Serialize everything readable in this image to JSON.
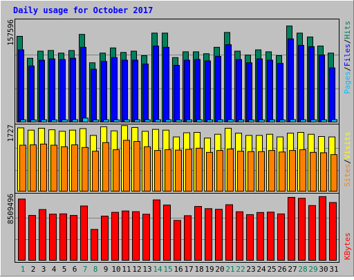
{
  "chart_data": [
    {
      "type": "bar",
      "title": "Daily usage for October 2017",
      "categories": [
        "1",
        "2",
        "3",
        "4",
        "5",
        "6",
        "7",
        "8",
        "9",
        "10",
        "11",
        "12",
        "13",
        "14",
        "15",
        "16",
        "17",
        "18",
        "19",
        "20",
        "21",
        "22",
        "23",
        "24",
        "25",
        "26",
        "27",
        "28",
        "29",
        "30",
        "31"
      ],
      "weekend_days": [
        "1",
        "7",
        "8",
        "14",
        "15",
        "21",
        "22",
        "28",
        "29"
      ],
      "ymax_label": "157596",
      "ylim": [
        0,
        157596
      ],
      "series": [
        {
          "name": "Hits",
          "color": "#00805c",
          "values": [
            134000,
            100000,
            111000,
            112000,
            108000,
            112000,
            137000,
            93000,
            108000,
            116000,
            109000,
            111000,
            104000,
            139000,
            139000,
            101000,
            110000,
            110000,
            107000,
            117000,
            140000,
            111000,
            105000,
            113000,
            110000,
            104000,
            150000,
            139000,
            133000,
            119000,
            108000
          ]
        },
        {
          "name": "Files",
          "color": "#0000ff",
          "values": [
            113000,
            88000,
            97000,
            99000,
            98000,
            100000,
            117000,
            83000,
            95000,
            101000,
            97000,
            97000,
            91000,
            119000,
            117000,
            89000,
            97000,
            98000,
            96000,
            103000,
            121000,
            98000,
            93000,
            99000,
            97000,
            92000,
            130000,
            120000,
            118000,
            105000,
            85000
          ]
        },
        {
          "name": "Pages",
          "color": "#00c0ff",
          "values": [
            4500,
            4300,
            4600,
            4400,
            4500,
            4700,
            7200,
            4300,
            4600,
            4500,
            4500,
            4600,
            4500,
            4700,
            4700,
            4300,
            4500,
            4600,
            4400,
            4500,
            4700,
            4400,
            4300,
            4500,
            4500,
            4300,
            4800,
            4600,
            4600,
            4500,
            4800
          ]
        }
      ],
      "legend": [
        {
          "label": "Pages",
          "color": "#00c0ff"
        },
        {
          "label": "Files",
          "color": "#0000ff"
        },
        {
          "label": "Hits",
          "color": "#00805c"
        }
      ],
      "legend_sep": "/"
    },
    {
      "type": "bar",
      "ymax_label": "1727",
      "ylim": [
        0,
        1727
      ],
      "series": [
        {
          "name": "Visits",
          "color": "#ffff00",
          "values": [
            1700,
            1640,
            1690,
            1650,
            1610,
            1640,
            1680,
            1500,
            1730,
            1620,
            1760,
            1710,
            1610,
            1660,
            1640,
            1460,
            1570,
            1580,
            1430,
            1530,
            1690,
            1560,
            1500,
            1500,
            1530,
            1460,
            1560,
            1580,
            1530,
            1470,
            1460
          ]
        },
        {
          "name": "Sites",
          "color": "#ff8000",
          "values": [
            1240,
            1250,
            1270,
            1240,
            1200,
            1250,
            1180,
            1080,
            1310,
            1120,
            1370,
            1340,
            1200,
            1100,
            1120,
            1110,
            1130,
            1160,
            1050,
            1100,
            1140,
            1080,
            1070,
            1070,
            1100,
            1060,
            1100,
            1120,
            1050,
            1040,
            990
          ]
        }
      ],
      "legend": [
        {
          "label": "Sites",
          "color": "#ff8000"
        },
        {
          "label": "Visits",
          "color": "#ffff00"
        }
      ],
      "legend_sep": "/"
    },
    {
      "type": "bar",
      "ymax_label": "8509496",
      "ylim": [
        0,
        8509496
      ],
      "series": [
        {
          "name": "KBytes",
          "color": "#ff0000",
          "values": [
            8200000,
            6030000,
            6810000,
            6200000,
            6240000,
            6030000,
            7280000,
            4180000,
            5940000,
            6440000,
            6620000,
            6530000,
            6190000,
            8090000,
            7410000,
            5370000,
            6000000,
            7220000,
            6930000,
            6840000,
            7450000,
            6520000,
            6140000,
            6420000,
            6470000,
            6230000,
            8420000,
            8300000,
            7340000,
            8520000,
            7740000
          ]
        }
      ],
      "legend": [
        {
          "label": "KBytes",
          "color": "#ff0000"
        }
      ],
      "legend_sep": "/"
    }
  ]
}
